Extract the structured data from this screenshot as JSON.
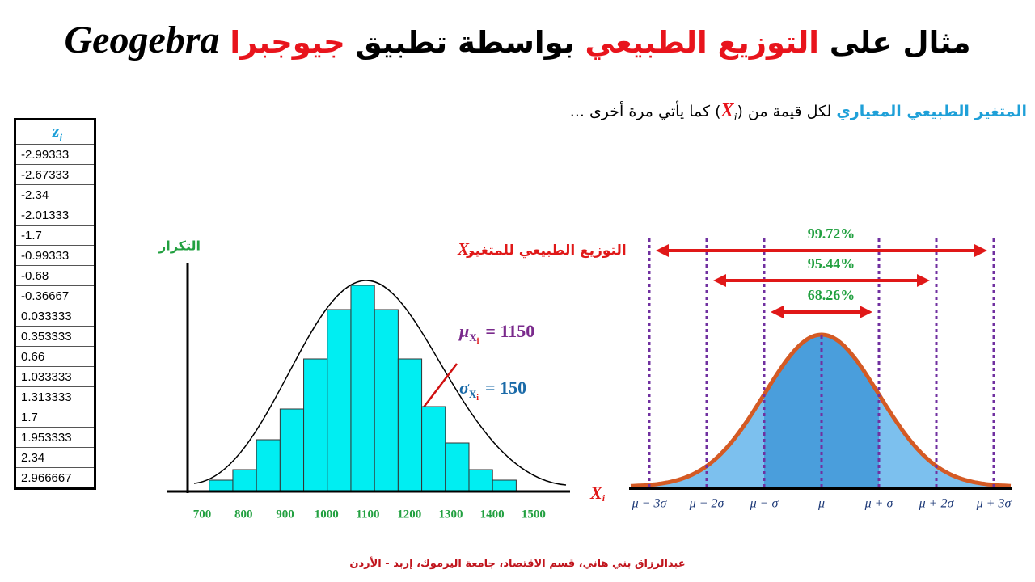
{
  "title": {
    "part1": "مثال على",
    "part2": "التوزيع الطبيعي",
    "part3": "بواسطة تطبيق",
    "part4": "جيوجبرا",
    "part5": "Geogebra"
  },
  "subtitle": {
    "part1": "المتغير الطبيعي المعياري",
    "part2": "لكل قيمة من",
    "open": "(",
    "var": "X",
    "sub": "i",
    "close": ")",
    "part3": "كما يأتي مرة أخرى ..."
  },
  "table": {
    "header": {
      "symbol": "z",
      "sub": "i"
    },
    "rows": [
      "-2.99333",
      "-2.67333",
      "-2.34",
      "-2.01333",
      "-1.7",
      "-0.99333",
      "-0.68",
      "-0.36667",
      "0.033333",
      "0.353333",
      "0.66",
      "1.033333",
      "1.313333",
      "1.7",
      "1.953333",
      "2.34",
      "2.966667"
    ]
  },
  "chart_data": {
    "type": "histogram",
    "title": "التوزيع الطبيعي للمتغير",
    "title_var": "X",
    "title_sub": "i",
    "ylabel": "التكرار",
    "xlabel": "X",
    "xlabel_sub": "i",
    "bins": [
      717,
      774,
      831,
      888,
      945,
      1002,
      1059,
      1116,
      1173,
      1230,
      1287,
      1344,
      1401,
      1458
    ],
    "values": [
      14,
      27,
      64,
      102,
      164,
      225,
      255,
      225,
      164,
      105,
      60,
      27,
      14
    ],
    "color": "#00eef2",
    "xlim": [
      616,
      1588
    ],
    "xticks": [
      700,
      800,
      900,
      1000,
      1100,
      1200,
      1300,
      1400,
      1500
    ],
    "ylim": [
      0,
      280
    ],
    "mean_label": {
      "symbol": "μ",
      "sub": "X",
      "subsub": "i",
      "text": "= 1150"
    },
    "sd_label": {
      "symbol": "σ",
      "sub": "X",
      "subsub": "i",
      "text": "= 150"
    }
  },
  "diagram": {
    "percent_labels": [
      "99.72%",
      "95.44%",
      "68.26%"
    ],
    "axis_labels": [
      "μ − 3σ",
      "μ − 2σ",
      "μ − σ",
      "μ",
      "μ + σ",
      "μ + 2σ",
      "μ + 3σ"
    ]
  },
  "footer": "عبدالرزاق بني هاني، قسم الاقتصاد، جامعة اليرموك، إربد - الأردن"
}
